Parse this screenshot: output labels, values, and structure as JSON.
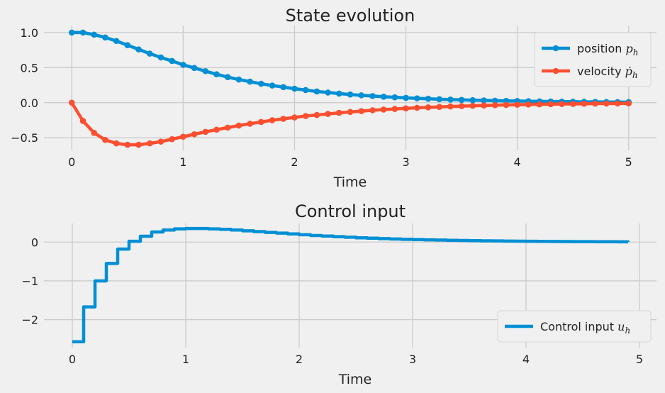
{
  "chart_data": [
    {
      "type": "line",
      "title": "State evolution",
      "xlabel": "Time",
      "ylabel": "",
      "xlim": [
        -0.25,
        5.25
      ],
      "ylim": [
        -0.68,
        1.1
      ],
      "xticks": [
        0,
        1,
        2,
        3,
        4,
        5
      ],
      "yticks": [
        -0.5,
        0.0,
        0.5,
        1.0
      ],
      "ytick_labels": [
        "−0.5",
        "0.0",
        "0.5",
        "1.0"
      ],
      "xtick_labels": [
        "0",
        "1",
        "2",
        "3",
        "4",
        "5"
      ],
      "grid": true,
      "legend_position": "top-right",
      "x": [
        0.0,
        0.1,
        0.2,
        0.3,
        0.4,
        0.5,
        0.6,
        0.7,
        0.8,
        0.9,
        1.0,
        1.1,
        1.2,
        1.3,
        1.4,
        1.5,
        1.6,
        1.7,
        1.8,
        1.9,
        2.0,
        2.1,
        2.2,
        2.3,
        2.4,
        2.5,
        2.6,
        2.7,
        2.8,
        2.9,
        3.0,
        3.1,
        3.2,
        3.3,
        3.4,
        3.5,
        3.6,
        3.7,
        3.8,
        3.9,
        4.0,
        4.1,
        4.2,
        4.3,
        4.4,
        4.5,
        4.6,
        4.7,
        4.8,
        4.9,
        5.0
      ],
      "series": [
        {
          "name": "position p",
          "legend_main": "position ",
          "legend_var": "p",
          "legend_sub": "h",
          "color": "#008fd5",
          "marker": "circle",
          "values": [
            1.0,
            1.0,
            0.97,
            0.93,
            0.88,
            0.82,
            0.76,
            0.7,
            0.645,
            0.595,
            0.54,
            0.495,
            0.45,
            0.405,
            0.365,
            0.33,
            0.3,
            0.27,
            0.245,
            0.222,
            0.2,
            0.18,
            0.16,
            0.145,
            0.13,
            0.117,
            0.105,
            0.095,
            0.085,
            0.077,
            0.069,
            0.062,
            0.056,
            0.05,
            0.045,
            0.04,
            0.036,
            0.033,
            0.029,
            0.026,
            0.024,
            0.021,
            0.019,
            0.017,
            0.015,
            0.014,
            0.012,
            0.011,
            0.01,
            0.009,
            0.008
          ]
        },
        {
          "name": "velocity p-dot",
          "legend_main": "velocity ",
          "legend_var": "ṗ",
          "legend_sub": "h",
          "color": "#fc4f30",
          "marker": "circle",
          "values": [
            0.0,
            -0.26,
            -0.43,
            -0.53,
            -0.58,
            -0.6,
            -0.6,
            -0.58,
            -0.555,
            -0.52,
            -0.485,
            -0.45,
            -0.415,
            -0.385,
            -0.355,
            -0.325,
            -0.3,
            -0.275,
            -0.25,
            -0.23,
            -0.21,
            -0.19,
            -0.175,
            -0.16,
            -0.145,
            -0.132,
            -0.12,
            -0.108,
            -0.098,
            -0.089,
            -0.081,
            -0.073,
            -0.066,
            -0.06,
            -0.054,
            -0.049,
            -0.044,
            -0.04,
            -0.036,
            -0.032,
            -0.029,
            -0.026,
            -0.023,
            -0.021,
            -0.019,
            -0.017,
            -0.015,
            -0.013,
            -0.012,
            -0.011,
            -0.01
          ]
        }
      ]
    },
    {
      "type": "line",
      "title": "Control input",
      "xlabel": "Time",
      "ylabel": "",
      "xlim": [
        -0.25,
        5.15
      ],
      "ylim": [
        -2.72,
        0.48
      ],
      "xticks": [
        0,
        1,
        2,
        3,
        4,
        5
      ],
      "yticks": [
        -2,
        -1,
        0
      ],
      "ytick_labels": [
        "−2",
        "−1",
        "0"
      ],
      "xtick_labels": [
        "0",
        "1",
        "2",
        "3",
        "4",
        "5"
      ],
      "grid": true,
      "legend_position": "bottom-right",
      "step": "post",
      "x": [
        0.0,
        0.1,
        0.2,
        0.3,
        0.4,
        0.5,
        0.6,
        0.7,
        0.8,
        0.9,
        1.0,
        1.1,
        1.2,
        1.3,
        1.4,
        1.5,
        1.6,
        1.7,
        1.8,
        1.9,
        2.0,
        2.1,
        2.2,
        2.3,
        2.4,
        2.5,
        2.6,
        2.7,
        2.8,
        2.9,
        3.0,
        3.1,
        3.2,
        3.3,
        3.4,
        3.5,
        3.6,
        3.7,
        3.8,
        3.9,
        4.0,
        4.1,
        4.2,
        4.3,
        4.4,
        4.5,
        4.6,
        4.7,
        4.8,
        4.9
      ],
      "series": [
        {
          "name": "Control input u",
          "legend_main": "Control input ",
          "legend_var": "u",
          "legend_sub": "h",
          "color": "#008fd5",
          "values": [
            -2.57,
            -1.67,
            -1.0,
            -0.55,
            -0.18,
            0.02,
            0.15,
            0.26,
            0.31,
            0.34,
            0.35,
            0.35,
            0.34,
            0.33,
            0.31,
            0.29,
            0.27,
            0.25,
            0.23,
            0.21,
            0.19,
            0.17,
            0.155,
            0.14,
            0.125,
            0.11,
            0.1,
            0.09,
            0.08,
            0.07,
            0.065,
            0.058,
            0.052,
            0.046,
            0.041,
            0.036,
            0.032,
            0.029,
            0.026,
            0.023,
            0.02,
            0.018,
            0.016,
            0.014,
            0.012,
            0.011,
            0.01,
            0.009,
            0.008,
            0.007
          ]
        }
      ]
    }
  ]
}
